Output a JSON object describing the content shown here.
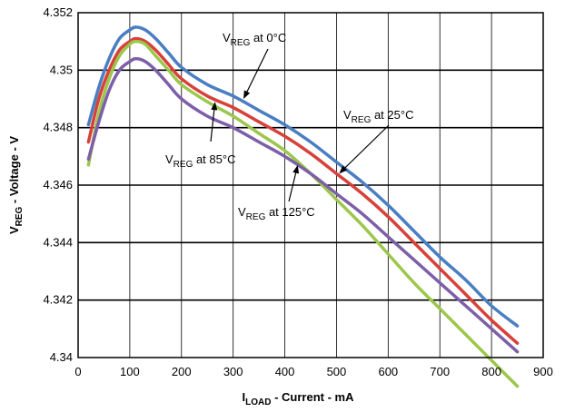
{
  "chart_data": {
    "type": "line",
    "xlabel": {
      "main": "I",
      "sub": "LOAD",
      "rest": " - Current - mA"
    },
    "ylabel": {
      "main": "V",
      "sub": "REG",
      "rest": " - Voltage - V"
    },
    "xlim": [
      0,
      900
    ],
    "ylim": [
      4.34,
      4.352
    ],
    "xticks": [
      0,
      100,
      200,
      300,
      400,
      500,
      600,
      700,
      800,
      900
    ],
    "xtick_labels": [
      "0",
      "100",
      "200",
      "300",
      "400",
      "500",
      "600",
      "700",
      "800",
      "900"
    ],
    "yticks": [
      4.34,
      4.342,
      4.344,
      4.346,
      4.348,
      4.35,
      4.352
    ],
    "ytick_labels": [
      "4.34",
      "4.342",
      "4.344",
      "4.346",
      "4.348",
      "4.35",
      "4.352"
    ],
    "grid": {
      "horizontal": true,
      "vertical": true
    },
    "series": [
      {
        "name": "V_REG at 0°C",
        "color": "#4a7ec2",
        "x": [
          20,
          40,
          60,
          80,
          100,
          112,
          130,
          150,
          175,
          200,
          250,
          300,
          350,
          400,
          450,
          500,
          550,
          600,
          650,
          700,
          750,
          800,
          850
        ],
        "y": [
          4.3481,
          4.3494,
          4.3504,
          4.3511,
          4.3514,
          4.3515,
          4.3514,
          4.3511,
          4.3506,
          4.3501,
          4.3495,
          4.3491,
          4.3486,
          4.3481,
          4.3475,
          4.3468,
          4.3461,
          4.3453,
          4.3444,
          4.3435,
          4.3427,
          4.3418,
          4.3411
        ]
      },
      {
        "name": "V_REG at 25°C",
        "color": "#d8403a",
        "x": [
          20,
          40,
          60,
          80,
          100,
          112,
          130,
          150,
          175,
          200,
          250,
          300,
          350,
          400,
          450,
          500,
          550,
          600,
          650,
          700,
          750,
          800,
          850
        ],
        "y": [
          4.3475,
          4.349,
          4.35,
          4.3507,
          4.351,
          4.3511,
          4.351,
          4.3507,
          4.3502,
          4.3497,
          4.3491,
          4.3487,
          4.3482,
          4.3477,
          4.3471,
          4.3464,
          4.3457,
          4.3449,
          4.344,
          4.3431,
          4.3422,
          4.3413,
          4.3405
        ]
      },
      {
        "name": "V_REG at 85°C",
        "color": "#9cc74c",
        "x": [
          20,
          40,
          60,
          80,
          100,
          112,
          130,
          150,
          175,
          200,
          250,
          300,
          350,
          400,
          450,
          500,
          550,
          600,
          650,
          700,
          750,
          800,
          850
        ],
        "y": [
          4.3467,
          4.3485,
          4.3497,
          4.3505,
          4.3509,
          4.351,
          4.3509,
          4.3505,
          4.35,
          4.3495,
          4.3489,
          4.3484,
          4.3478,
          4.3472,
          4.3464,
          4.3455,
          4.3446,
          4.3436,
          4.3426,
          4.3417,
          4.3408,
          4.3399,
          4.339
        ]
      },
      {
        "name": "V_REG at 125°C",
        "color": "#7c5fa8",
        "x": [
          20,
          40,
          60,
          80,
          100,
          112,
          130,
          150,
          175,
          200,
          250,
          300,
          350,
          400,
          450,
          500,
          550,
          600,
          650,
          700,
          750,
          800,
          850
        ],
        "y": [
          4.3469,
          4.3482,
          4.3493,
          4.35,
          4.3503,
          4.3504,
          4.3503,
          4.35,
          4.3495,
          4.349,
          4.3484,
          4.348,
          4.3475,
          4.347,
          4.3464,
          4.3457,
          4.345,
          4.3442,
          4.3434,
          4.3426,
          4.3418,
          4.341,
          4.3402
        ]
      }
    ],
    "annotations": [
      {
        "main": "V",
        "sub": "REG",
        "rest": " at 0°C",
        "series": 0,
        "x": 320,
        "y": 4.349
      },
      {
        "main": "V",
        "sub": "REG",
        "rest": " at 25°C",
        "series": 1,
        "x": 505,
        "y": 4.3464
      },
      {
        "main": "V",
        "sub": "REG",
        "rest": " at 85°C",
        "series": 2,
        "x": 265,
        "y": 4.3489
      },
      {
        "main": "V",
        "sub": "REG",
        "rest": " at 125°C",
        "series": 3,
        "x": 425,
        "y": 4.3467
      }
    ]
  }
}
